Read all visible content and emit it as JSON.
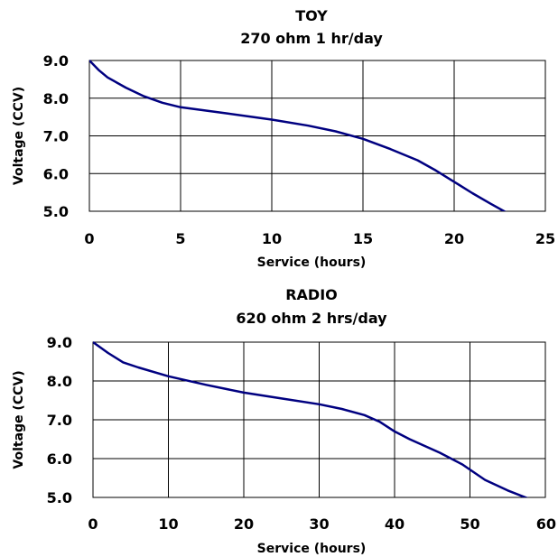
{
  "chart_data": [
    {
      "type": "line",
      "title": "TOY",
      "subtitle": "270 ohm 1 hr/day",
      "xlabel": "Service (hours)",
      "ylabel": "Voltage (CCV)",
      "xlim": [
        0,
        25
      ],
      "ylim": [
        5.0,
        9.0
      ],
      "xticks": [
        "0",
        "5",
        "10",
        "15",
        "20",
        "25"
      ],
      "yticks": [
        "9.0",
        "8.0",
        "7.0",
        "6.0",
        "5.0"
      ],
      "grid": true,
      "line_color": "#000080",
      "series": [
        {
          "x": [
            0,
            0.5,
            1,
            2,
            3,
            4,
            5,
            7.5,
            10,
            12,
            13.5,
            15,
            16.5,
            18,
            19,
            20,
            21,
            22,
            23
          ],
          "y": [
            9.0,
            8.75,
            8.55,
            8.28,
            8.05,
            7.88,
            7.76,
            7.6,
            7.43,
            7.27,
            7.12,
            6.92,
            6.65,
            6.35,
            6.08,
            5.78,
            5.48,
            5.2,
            4.93
          ]
        }
      ]
    },
    {
      "type": "line",
      "title": "RADIO",
      "subtitle": "620 ohm 2 hrs/day",
      "xlabel": "Service (hours)",
      "ylabel": "Voltage (CCV)",
      "xlim": [
        0,
        60
      ],
      "ylim": [
        5.0,
        9.0
      ],
      "xticks": [
        "0",
        "10",
        "20",
        "30",
        "40",
        "50",
        "60"
      ],
      "yticks": [
        "9.0",
        "8.0",
        "7.0",
        "6.0",
        "5.0"
      ],
      "grid": true,
      "line_color": "#000080",
      "series": [
        {
          "x": [
            0,
            2,
            4,
            6,
            10,
            15,
            20,
            25,
            30,
            33,
            36,
            38,
            40,
            42,
            46,
            49,
            52,
            55,
            58
          ],
          "y": [
            9.0,
            8.72,
            8.48,
            8.35,
            8.12,
            7.9,
            7.7,
            7.55,
            7.4,
            7.28,
            7.12,
            6.95,
            6.7,
            6.5,
            6.15,
            5.85,
            5.45,
            5.18,
            4.95
          ]
        }
      ]
    }
  ]
}
